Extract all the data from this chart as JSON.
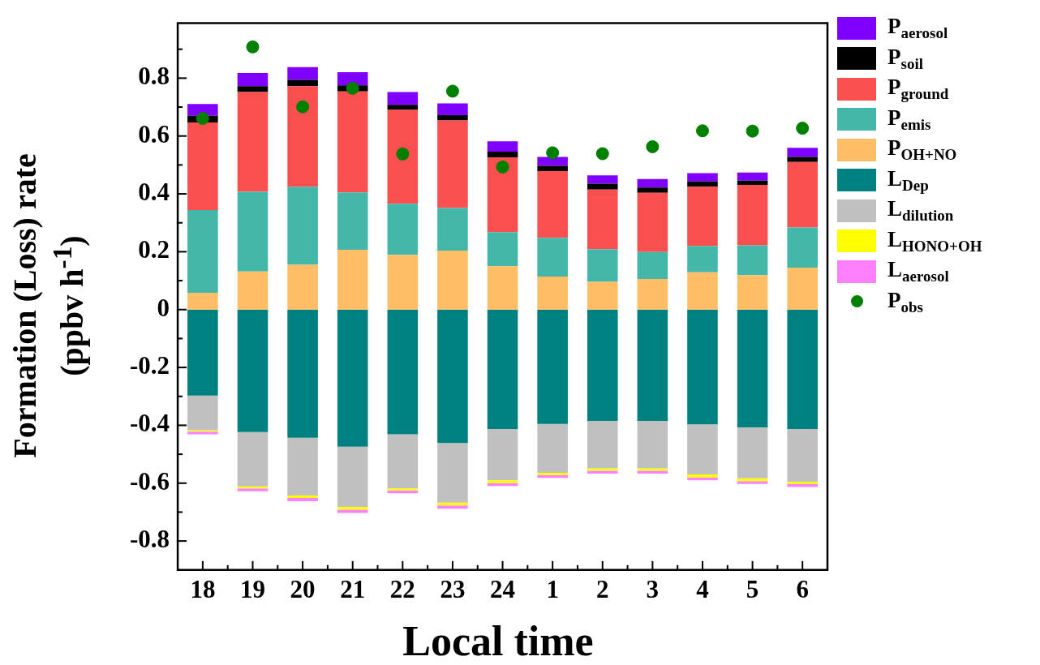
{
  "chart_data": {
    "type": "bar",
    "stacked": true,
    "xlabel": "Local time",
    "ylabel": "Formation (Loss) rate (ppbv h$^{-1}$)",
    "categories": [
      "18",
      "19",
      "20",
      "21",
      "22",
      "23",
      "24",
      "1",
      "2",
      "3",
      "4",
      "5",
      "6"
    ],
    "ylim": [
      -0.9,
      0.99
    ],
    "yticks": [
      -0.8,
      {
        "value": -0.7,
        "label": null
      },
      -0.6,
      {
        "value": -0.5,
        "label": null
      },
      -0.4,
      {
        "value": -0.3,
        "label": null
      },
      -0.2,
      {
        "value": -0.1,
        "label": null
      },
      0.0,
      {
        "value": 0.1,
        "label": null
      },
      0.2,
      {
        "value": 0.3,
        "label": null
      },
      0.4,
      {
        "value": 0.5,
        "label": null
      },
      0.6,
      {
        "value": 0.7,
        "label": null
      },
      0.8,
      {
        "value": 0.9,
        "label": null
      }
    ],
    "grid": false,
    "legend": "right",
    "marker": "circle",
    "series": [
      {
        "name": "P$_{OH+NO}$",
        "color": "#ffbe66",
        "values": [
          0.058,
          0.132,
          0.155,
          0.207,
          0.189,
          0.204,
          0.15,
          0.114,
          0.096,
          0.106,
          0.129,
          0.119,
          0.145
        ]
      },
      {
        "name": "P$_{emis}$",
        "color": "#42b7aa",
        "values": [
          0.286,
          0.275,
          0.27,
          0.198,
          0.177,
          0.147,
          0.118,
          0.134,
          0.113,
          0.093,
          0.091,
          0.103,
          0.139
        ]
      },
      {
        "name": "P$_{ground}$",
        "color": "#f94f4f",
        "values": [
          0.303,
          0.345,
          0.347,
          0.349,
          0.324,
          0.303,
          0.258,
          0.231,
          0.206,
          0.205,
          0.205,
          0.209,
          0.226
        ]
      },
      {
        "name": "P$_{soil}$",
        "color": "#000000",
        "values": [
          0.023,
          0.02,
          0.022,
          0.021,
          0.018,
          0.018,
          0.02,
          0.018,
          0.02,
          0.018,
          0.018,
          0.015,
          0.018
        ]
      },
      {
        "name": "P$_{aerosol}$",
        "color": "#8000ff",
        "values": [
          0.041,
          0.046,
          0.044,
          0.046,
          0.044,
          0.041,
          0.036,
          0.031,
          0.029,
          0.029,
          0.029,
          0.028,
          0.031
        ]
      },
      {
        "name": "L$_{Dep}$",
        "color": "#008080",
        "values": [
          -0.297,
          -0.423,
          -0.443,
          -0.474,
          -0.431,
          -0.461,
          -0.413,
          -0.395,
          -0.385,
          -0.385,
          -0.397,
          -0.407,
          -0.413
        ]
      },
      {
        "name": "L$_{dilution}$",
        "color": "#c0c0c0",
        "values": [
          -0.12,
          -0.188,
          -0.2,
          -0.208,
          -0.187,
          -0.206,
          -0.177,
          -0.169,
          -0.164,
          -0.164,
          -0.173,
          -0.176,
          -0.182
        ]
      },
      {
        "name": "L$_{HONO+OH}$",
        "color": "#ffff00",
        "values": [
          -0.005,
          -0.007,
          -0.008,
          -0.01,
          -0.007,
          -0.01,
          -0.01,
          -0.008,
          -0.008,
          -0.008,
          -0.01,
          -0.01,
          -0.008
        ]
      },
      {
        "name": "L$_{aerosol}$",
        "color": "#ff80ff",
        "values": [
          -0.009,
          -0.01,
          -0.011,
          -0.011,
          -0.01,
          -0.011,
          -0.01,
          -0.01,
          -0.01,
          -0.01,
          -0.01,
          -0.01,
          -0.01
        ]
      },
      {
        "name": "P$_{obs}$",
        "type": "scatter",
        "color": "#008000",
        "x": [
          "18",
          "19",
          "20",
          "21",
          "22",
          "23",
          "24",
          "1",
          "2",
          "3",
          "4",
          "5",
          "6"
        ],
        "values": [
          0.661,
          0.908,
          0.701,
          0.765,
          0.538,
          0.755,
          0.493,
          0.542,
          0.539,
          0.563,
          0.618,
          0.617,
          0.627
        ]
      }
    ]
  }
}
